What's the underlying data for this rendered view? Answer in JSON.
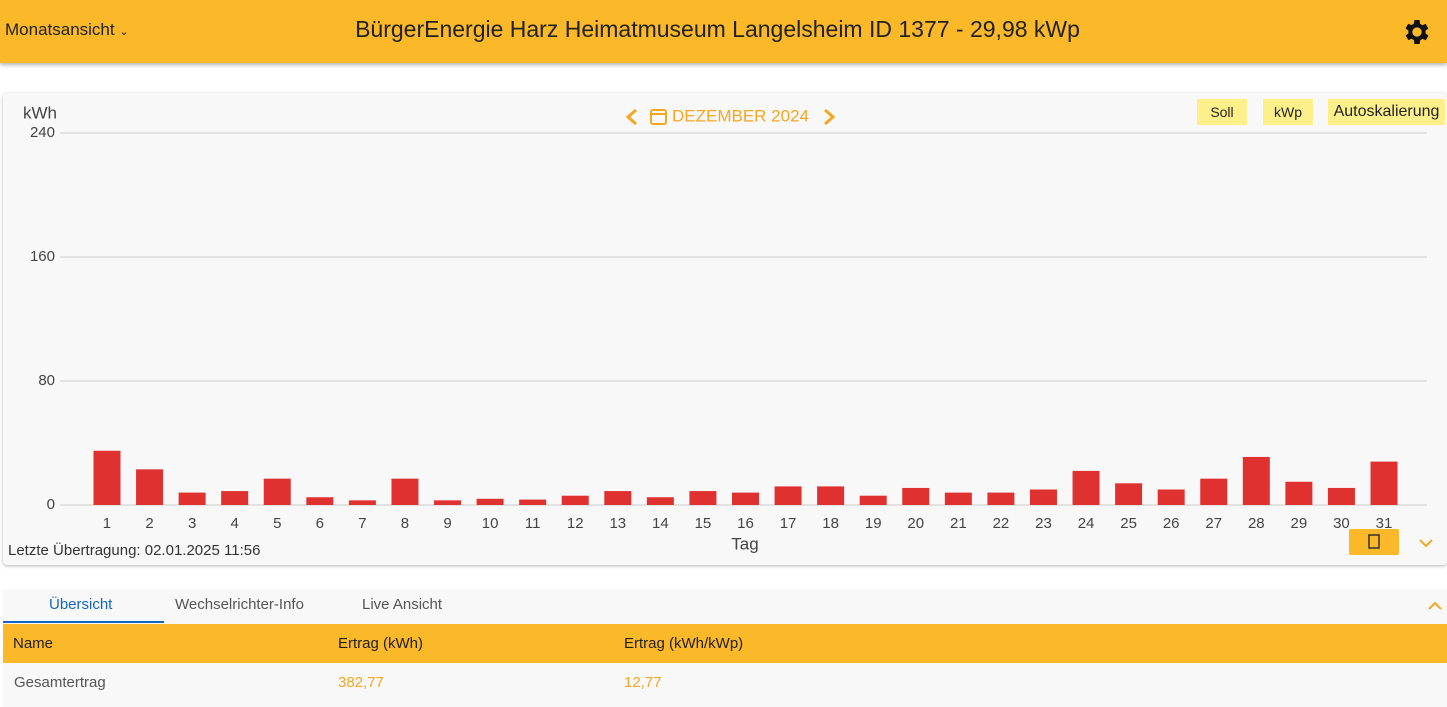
{
  "header": {
    "view_menu": "Monatsansicht",
    "title": "BürgerEnergie Harz Heimatmuseum Langelsheim ID 1377 - 29,98 kWp"
  },
  "toolbar": {
    "buttons": [
      "Soll",
      "kWp",
      "Autoskalierung"
    ]
  },
  "chart_data": {
    "type": "bar",
    "period": "DEZEMBER 2024",
    "y_label": "kWh",
    "x_label": "Tag",
    "categories": [
      "1",
      "2",
      "3",
      "4",
      "5",
      "6",
      "7",
      "8",
      "9",
      "10",
      "11",
      "12",
      "13",
      "14",
      "15",
      "16",
      "17",
      "18",
      "19",
      "20",
      "21",
      "22",
      "23",
      "24",
      "25",
      "26",
      "27",
      "28",
      "29",
      "30",
      "31"
    ],
    "values": [
      35,
      23,
      8,
      9,
      17,
      5,
      3,
      17,
      3,
      4,
      3.5,
      6,
      9,
      5,
      9,
      8,
      12,
      12,
      6,
      11,
      8,
      8,
      10,
      22,
      14,
      10,
      17,
      31,
      15,
      11,
      28
    ],
    "color": "#e03131",
    "ylim": [
      0,
      240
    ],
    "yticks": [
      0,
      80,
      160,
      240
    ],
    "grid": true
  },
  "status": "Letzte Übertragung: 02.01.2025 11:56",
  "tabs": [
    "Übersicht",
    "Wechselrichter-Info",
    "Live Ansicht"
  ],
  "table": {
    "header": [
      "Name",
      "Ertrag (kWh)",
      "Ertrag (kWh/kWp)"
    ],
    "rows": [
      [
        "Gesamtertrag",
        "382,77",
        "12,77"
      ]
    ]
  }
}
